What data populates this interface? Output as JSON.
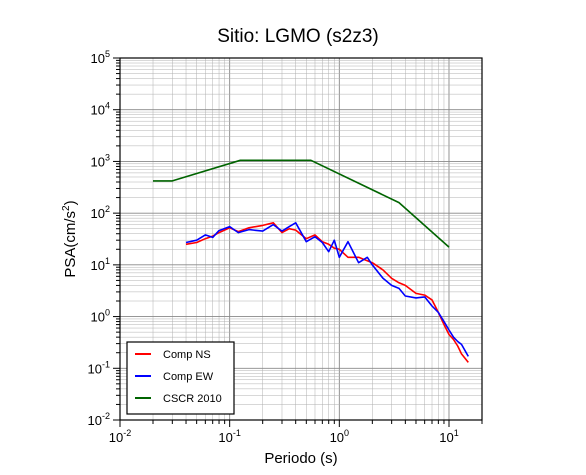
{
  "chart_data": {
    "type": "line",
    "title": "Sitio: LGMO (s2z3)",
    "xlabel": "Periodo (s)",
    "ylabel_main": "PSA(cm/s",
    "ylabel_sup": "2",
    "ylabel_end": ")",
    "x_scale": "log",
    "y_scale": "log",
    "xlim": [
      0.01,
      20
    ],
    "ylim": [
      0.01,
      100000
    ],
    "grid": true,
    "legend_position": "bottom-left",
    "x_ticks": [
      {
        "base": "10",
        "exp": "-2",
        "value": 0.01
      },
      {
        "base": "10",
        "exp": "-1",
        "value": 0.1
      },
      {
        "base": "10",
        "exp": "0",
        "value": 1
      },
      {
        "base": "10",
        "exp": "1",
        "value": 10
      }
    ],
    "y_ticks": [
      {
        "base": "10",
        "exp": "-2",
        "value": 0.01
      },
      {
        "base": "10",
        "exp": "-1",
        "value": 0.1
      },
      {
        "base": "10",
        "exp": "0",
        "value": 1
      },
      {
        "base": "10",
        "exp": "1",
        "value": 10
      },
      {
        "base": "10",
        "exp": "2",
        "value": 100
      },
      {
        "base": "10",
        "exp": "3",
        "value": 1000
      },
      {
        "base": "10",
        "exp": "4",
        "value": 10000
      },
      {
        "base": "10",
        "exp": "5",
        "value": 100000
      }
    ],
    "series": [
      {
        "name": "Comp NS",
        "color": "#ff0000",
        "x": [
          0.04,
          0.05,
          0.06,
          0.07,
          0.08,
          0.1,
          0.12,
          0.15,
          0.2,
          0.25,
          0.3,
          0.35,
          0.4,
          0.5,
          0.6,
          0.7,
          0.8,
          0.9,
          1.0,
          1.2,
          1.5,
          1.8,
          2.0,
          2.5,
          3.0,
          3.5,
          4.0,
          5.0,
          6.0,
          7.0,
          8.0,
          9.0,
          10.0,
          11.0,
          12.0,
          13.0,
          15.0
        ],
        "y": [
          25,
          27,
          32,
          36,
          42,
          52,
          44,
          52,
          58,
          65,
          42,
          50,
          47,
          32,
          38,
          28,
          25,
          21,
          20,
          14,
          14,
          12,
          11,
          8,
          5.5,
          4.5,
          4.0,
          2.8,
          2.6,
          2.1,
          1.2,
          0.7,
          0.45,
          0.36,
          0.27,
          0.19,
          0.13
        ]
      },
      {
        "name": "Comp EW",
        "color": "#0000ff",
        "x": [
          0.04,
          0.05,
          0.06,
          0.07,
          0.08,
          0.1,
          0.12,
          0.15,
          0.2,
          0.25,
          0.3,
          0.35,
          0.4,
          0.5,
          0.6,
          0.7,
          0.8,
          0.9,
          1.0,
          1.2,
          1.5,
          1.8,
          2.0,
          2.5,
          3.0,
          3.5,
          4.0,
          5.0,
          6.0,
          7.0,
          8.0,
          9.0,
          10.0,
          11.0,
          12.0,
          13.0,
          15.0
        ],
        "y": [
          27,
          30,
          38,
          34,
          46,
          55,
          42,
          48,
          45,
          60,
          45,
          55,
          65,
          28,
          35,
          27,
          18,
          30,
          14,
          28,
          11,
          14,
          10,
          5.5,
          4.0,
          3.5,
          2.5,
          2.3,
          2.4,
          1.6,
          1.2,
          0.8,
          0.55,
          0.4,
          0.33,
          0.29,
          0.17
        ]
      },
      {
        "name": "CSCR 2010",
        "color": "#006400",
        "x": [
          0.02,
          0.03,
          0.125,
          0.55,
          3.5,
          10
        ],
        "y": [
          420,
          420,
          1050,
          1050,
          160,
          22
        ]
      }
    ]
  }
}
